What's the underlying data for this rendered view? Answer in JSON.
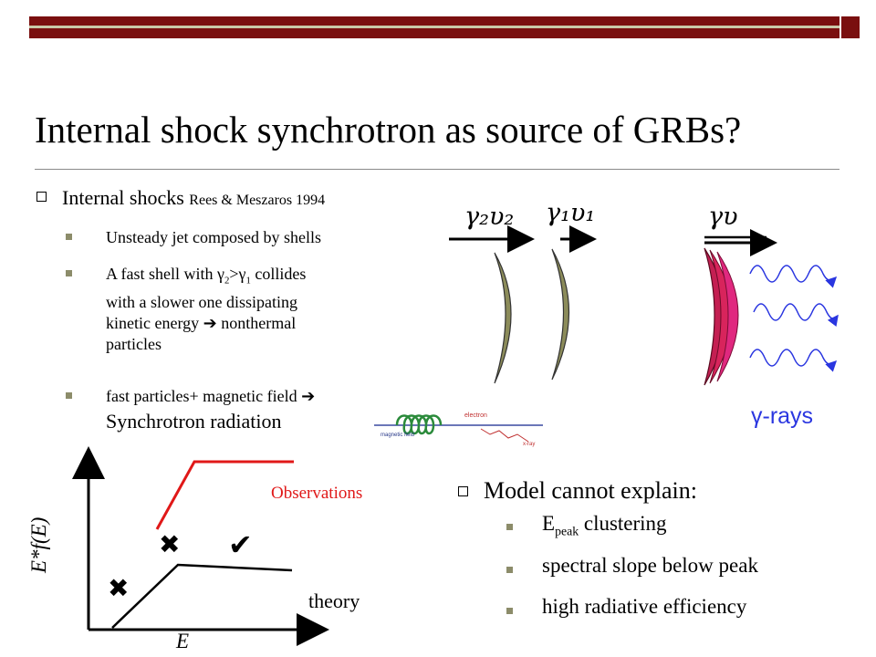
{
  "slide": {
    "title": "Internal shock synchrotron as source of GRBs?",
    "colors": {
      "bar": "#7a0f0f",
      "stripe": "#c9c9a8",
      "shell": "#8c8c5a",
      "hot_shell": "#c41f52",
      "gamma_wave": "#2a36e0",
      "observations": "#e01818"
    }
  },
  "left_list": {
    "heading": "Internal shocks",
    "citation": "Rees & Meszaros 1994",
    "items": {
      "one": "Unsteady jet composed by shells",
      "two_a": "A fast shell with γ",
      "two_sub_a": "2",
      "two_b": ">γ",
      "two_sub_b": "1",
      "two_c": " collides",
      "two_line2": "with a slower one dissipating",
      "two_line3a": "kinetic energy ",
      "two_line3b": " nonthermal",
      "two_line4": "particles",
      "three_a": "fast particles+ magnetic field ",
      "three_b": "Synchrotron radiation"
    },
    "arrow_icon": "right-arrow-icon"
  },
  "shells_diagram": {
    "label_shell2": "γ₂υ₂",
    "label_shell1": "γ₁υ₁",
    "label_merged": "γυ",
    "gamma_rays_label": "γ-rays"
  },
  "synchrotron_sketch": {
    "magnetic_field": "magnetic field",
    "electron": "electron",
    "xray": "x-ray"
  },
  "spectrum_sketch": {
    "ylabel": "E*f(E)",
    "xlabel": "E",
    "observations_label": "Observations",
    "theory_label": "theory",
    "cross_icon": "✖",
    "check_icon": "✔"
  },
  "right_list": {
    "heading": "Model cannot explain:",
    "item1_a": "E",
    "item1_sub": "peak",
    "item1_b": " clustering",
    "item2": "spectral slope below peak",
    "item3": "high radiative efficiency"
  }
}
